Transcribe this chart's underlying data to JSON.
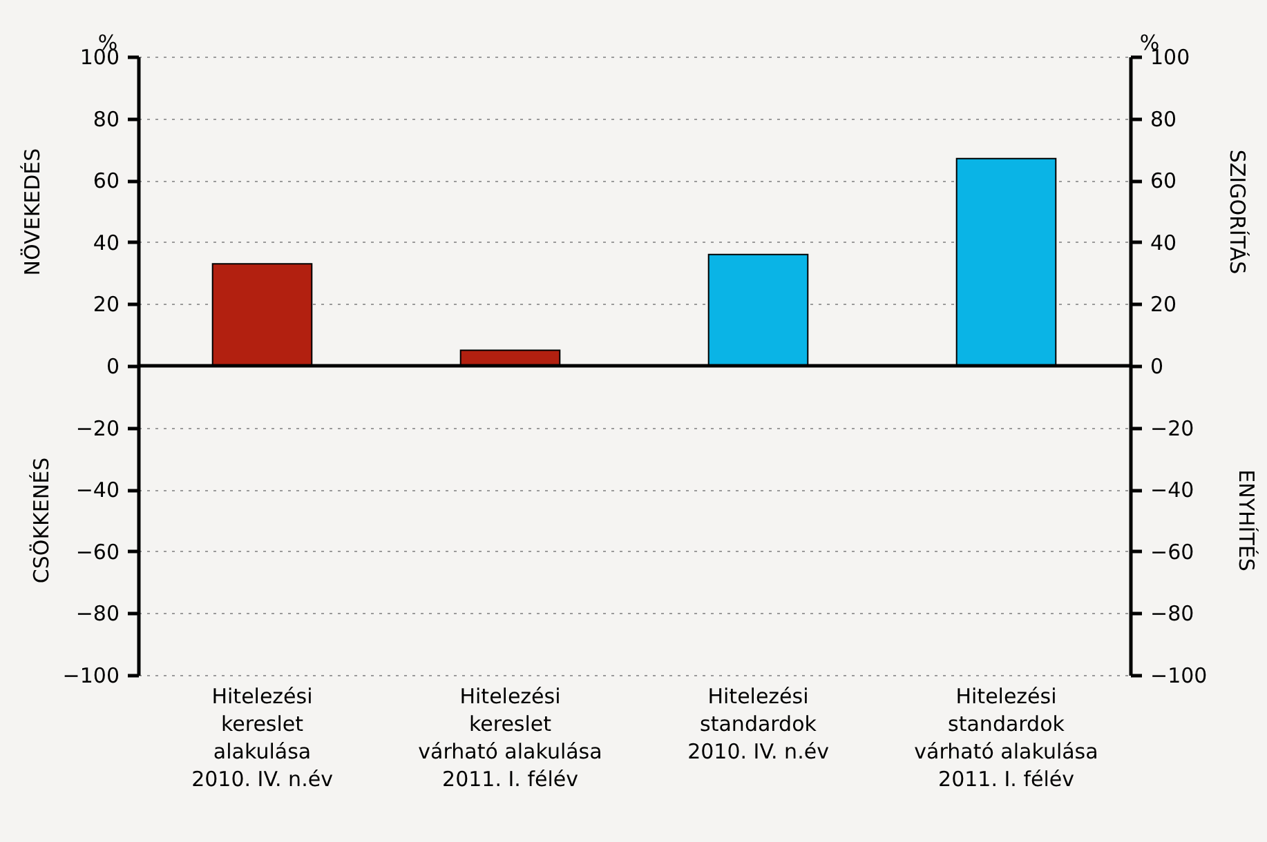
{
  "chart_data": {
    "type": "bar",
    "categories": [
      "Hitelezési\nkereslet\nalakulása\n2010. IV. n.év",
      "Hitelezési\nkereslet\nvárható alakulása\n2011. I. félév",
      "Hitelezési\nstandardok\n2010. IV. n.év",
      "Hitelezési\nstandardok\nvárható alakulása\n2011. I. félév"
    ],
    "series": [
      {
        "color": "#b22010",
        "values": [
          33,
          5,
          null,
          null
        ]
      },
      {
        "color": "#0ab4e6",
        "values": [
          null,
          null,
          36,
          67
        ],
        "axis": "y2"
      }
    ],
    "ylabel": "NÖVEKEDÉS",
    "y2label": "SZIGORÍTÁS",
    "annotations": [
      "%",
      "%",
      "CSÖKKENÉS",
      "ENYHÍTÉS"
    ],
    "ylim": [
      -100,
      100
    ],
    "yticks": [
      {
        "value": -100,
        "label": "−100"
      },
      {
        "value": -80,
        "label": "−80"
      },
      {
        "value": -60,
        "label": "−60"
      },
      {
        "value": -40,
        "label": "−40"
      },
      {
        "value": -20,
        "label": "−20"
      },
      0,
      20,
      40,
      60,
      80,
      100
    ],
    "y2lim": [
      -100,
      100
    ],
    "y2ticks": [
      {
        "value": -100,
        "label": "−100"
      },
      {
        "value": -80,
        "label": "−80"
      },
      {
        "value": -60,
        "label": "−60"
      },
      {
        "value": -40,
        "label": "−40"
      },
      {
        "value": -20,
        "label": "−20"
      },
      0,
      20,
      40,
      60,
      80,
      100
    ],
    "grid": "y"
  }
}
